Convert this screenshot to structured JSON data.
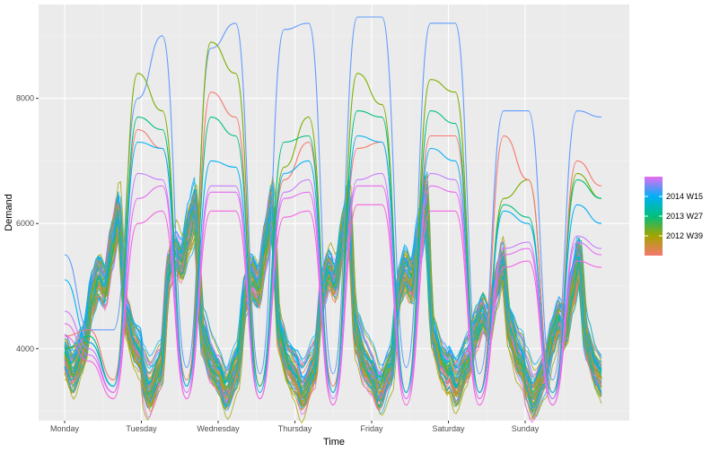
{
  "chart_data": {
    "type": "line",
    "title": "",
    "xlabel": "Time",
    "ylabel": "Demand",
    "ylim": [
      2850,
      9500
    ],
    "y_ticks": [
      "4000",
      "6000",
      "8000"
    ],
    "x_ticks": [
      "Monday",
      "Tuesday",
      "Wednesday",
      "Thursday",
      "Friday",
      "Saturday",
      "Sunday"
    ],
    "grid": true,
    "legend": {
      "placement": "right",
      "type": "colorbar",
      "labels": [
        "2014 W15",
        "2013 W27",
        "2012 W39"
      ],
      "colors": [
        "#e76bf3",
        "#00b0f6",
        "#00bf7d",
        "#a3a500",
        "#f8766d"
      ]
    },
    "weekly_profile_peaks": [
      {
        "day": "Monday",
        "night_low": 3600,
        "morning_peak": 5200,
        "evening_peak": 6200
      },
      {
        "day": "Tuesday",
        "night_low": 3300,
        "morning_peak": 5600,
        "evening_peak": 6300
      },
      {
        "day": "Wednesday",
        "night_low": 3300,
        "morning_peak": 5200,
        "evening_peak": 6300
      },
      {
        "day": "Thursday",
        "night_low": 3300,
        "morning_peak": 5300,
        "evening_peak": 6300
      },
      {
        "day": "Friday",
        "night_low": 3300,
        "morning_peak": 5300,
        "evening_peak": 6400
      },
      {
        "day": "Saturday",
        "night_low": 3400,
        "morning_peak": 4600,
        "evening_peak": 5400
      },
      {
        "day": "Sunday",
        "night_low": 3200,
        "morning_peak": 4500,
        "evening_peak": 5500
      }
    ],
    "series": [
      {
        "color": "#619cff",
        "values": [
          5500,
          4300,
          4300,
          8000,
          9000,
          3700,
          8800,
          9200,
          3600,
          9100,
          9200,
          3600,
          9300,
          9300,
          3700,
          9200,
          9200,
          3600,
          7800,
          7800,
          3500,
          7800,
          7700
        ]
      },
      {
        "color": "#7cae00",
        "values": [
          4000,
          4100,
          3400,
          8400,
          7800,
          3400,
          8900,
          8400,
          3400,
          6900,
          7700,
          3300,
          8400,
          7900,
          3300,
          8300,
          8100,
          3300,
          6400,
          6700,
          3300,
          6800,
          6400
        ]
      },
      {
        "color": "#f8766d",
        "values": [
          4200,
          4300,
          3500,
          7500,
          7200,
          3500,
          8100,
          7700,
          3400,
          6700,
          7300,
          3400,
          7200,
          7300,
          3300,
          7400,
          7400,
          3300,
          7400,
          6700,
          3300,
          7000,
          6600
        ]
      },
      {
        "color": "#00bf7d",
        "values": [
          4000,
          4200,
          3400,
          7700,
          7500,
          3400,
          7700,
          7400,
          3400,
          7300,
          7400,
          3300,
          7800,
          7700,
          3300,
          7800,
          7600,
          3300,
          6300,
          6100,
          3200,
          6700,
          6400
        ]
      },
      {
        "color": "#00b0f6",
        "values": [
          5100,
          4100,
          3400,
          7300,
          7200,
          3400,
          7000,
          6900,
          3300,
          6800,
          7000,
          3300,
          7400,
          7300,
          3300,
          7200,
          7000,
          3300,
          6200,
          6000,
          3300,
          6300,
          6000
        ]
      },
      {
        "color": "#c77cff",
        "values": [
          4600,
          4000,
          3300,
          6800,
          6700,
          3300,
          6600,
          6600,
          3200,
          6500,
          6700,
          3200,
          6700,
          6800,
          3200,
          6800,
          6700,
          3200,
          5600,
          5700,
          3200,
          5800,
          5600
        ]
      },
      {
        "color": "#e76bf3",
        "values": [
          4400,
          3900,
          3300,
          6400,
          6600,
          3200,
          6500,
          6500,
          3200,
          6400,
          6500,
          3100,
          6600,
          6600,
          3200,
          6600,
          6500,
          3200,
          5500,
          5600,
          3100,
          5700,
          5500
        ]
      },
      {
        "color": "#f564e3",
        "values": [
          4200,
          3800,
          3200,
          6000,
          6200,
          3200,
          6200,
          6200,
          3200,
          6100,
          6200,
          3100,
          6300,
          6300,
          3100,
          6200,
          6200,
          3100,
          5300,
          5400,
          3100,
          5400,
          5300
        ]
      }
    ]
  }
}
